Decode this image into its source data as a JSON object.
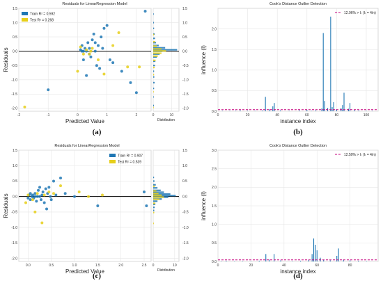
{
  "colors": {
    "train": "#1f77b4",
    "test": "#e6cf1a",
    "cooks_stem": "#1f77b4",
    "threshold": "#c6007f",
    "grid": "#e6e6e6",
    "axis": "#555555",
    "zero_line": "#000000"
  },
  "chart_data": [
    {
      "type": "scatter",
      "panel_label": "(a)",
      "title": "Residuals for LinearRegression Model",
      "xlabel": "Predicted Value",
      "ylabel": "Residuals",
      "xlim": [
        -2,
        2.5
      ],
      "ylim": [
        -2.1,
        1.5
      ],
      "xticks": [
        -2,
        -1,
        0,
        1,
        2
      ],
      "yticks": [
        -2.0,
        -1.5,
        -1.0,
        -0.5,
        0.0,
        0.5,
        1.0,
        1.5
      ],
      "xtick_labels": [
        "-2",
        "-1",
        "0",
        "1",
        "2"
      ],
      "ytick_labels": [
        "-2.0",
        "-1.5",
        "-1.0",
        "-0.5",
        "0.0",
        "0.5",
        "1.0",
        "1.5"
      ],
      "legend": [
        "Train R² = 0.592",
        "Test R² = 0.268"
      ],
      "legend_position": "top-left",
      "grid": true,
      "series": [
        {
          "name": "Train R² = 0.592",
          "points": [
            [
              -1.0,
              -1.35
            ],
            [
              0.1,
              0.05
            ],
            [
              0.15,
              0.2
            ],
            [
              0.2,
              -0.3
            ],
            [
              0.25,
              0.1
            ],
            [
              0.3,
              0.0
            ],
            [
              0.35,
              0.3
            ],
            [
              0.4,
              0.1
            ],
            [
              0.45,
              -0.2
            ],
            [
              0.5,
              0.4
            ],
            [
              0.55,
              0.6
            ],
            [
              0.6,
              0.3
            ],
            [
              0.65,
              -0.5
            ],
            [
              0.7,
              0.2
            ],
            [
              0.75,
              -0.6
            ],
            [
              0.8,
              0.5
            ],
            [
              0.85,
              0.1
            ],
            [
              0.9,
              0.8
            ],
            [
              1.0,
              0.9
            ],
            [
              1.1,
              -0.3
            ],
            [
              1.2,
              -0.4
            ],
            [
              1.5,
              -0.7
            ],
            [
              1.8,
              -1.1
            ],
            [
              2.0,
              -1.45
            ],
            [
              2.3,
              1.4
            ],
            [
              0.3,
              -0.85
            ],
            [
              0.2,
              0.0
            ],
            [
              0.4,
              -0.1
            ],
            [
              0.6,
              0.0
            ],
            [
              0.15,
              0.0
            ]
          ]
        },
        {
          "name": "Test R² = 0.268",
          "points": [
            [
              -1.8,
              -1.95
            ],
            [
              0.1,
              0.15
            ],
            [
              0.2,
              -0.1
            ],
            [
              0.3,
              0.05
            ],
            [
              0.4,
              -0.1
            ],
            [
              0.5,
              0.1
            ],
            [
              0.7,
              -0.3
            ],
            [
              0.9,
              -0.8
            ],
            [
              1.2,
              0.2
            ],
            [
              1.4,
              0.65
            ],
            [
              1.7,
              -0.55
            ],
            [
              2.1,
              -0.55
            ],
            [
              0.0,
              -0.7
            ],
            [
              0.45,
              0.0
            ]
          ]
        }
      ],
      "distribution": {
        "xlabel": "Distribution",
        "xlim": [
          0,
          14
        ],
        "xticks": [
          0,
          10
        ],
        "xtick_labels": [
          "0",
          "10"
        ],
        "train_bins": [
          [
            -1.9,
            0.4
          ],
          [
            -1.6,
            0.3
          ],
          [
            -1.3,
            0.5
          ],
          [
            -1.1,
            0.8
          ],
          [
            -0.9,
            0.6
          ],
          [
            -0.7,
            0.5
          ],
          [
            -0.5,
            1.0
          ],
          [
            -0.35,
            1.2
          ],
          [
            -0.2,
            2.0
          ],
          [
            -0.1,
            3.5
          ],
          [
            0.0,
            5.0
          ],
          [
            0.05,
            13.0
          ],
          [
            0.12,
            6.5
          ],
          [
            0.2,
            3.0
          ],
          [
            0.3,
            1.5
          ],
          [
            0.45,
            1.0
          ],
          [
            0.6,
            0.8
          ],
          [
            0.8,
            0.5
          ],
          [
            1.0,
            0.4
          ],
          [
            1.3,
            0.3
          ]
        ],
        "test_bins": [
          [
            -1.95,
            0.3
          ],
          [
            -1.4,
            0.3
          ],
          [
            -0.8,
            0.5
          ],
          [
            -0.55,
            0.8
          ],
          [
            -0.3,
            1.3
          ],
          [
            -0.15,
            2.5
          ],
          [
            -0.05,
            4.5
          ],
          [
            0.03,
            7.0
          ],
          [
            0.1,
            4.5
          ],
          [
            0.2,
            2.0
          ],
          [
            0.35,
            1.0
          ],
          [
            0.6,
            0.5
          ]
        ]
      }
    },
    {
      "type": "bar",
      "panel_label": "(b)",
      "title": "Cook's Distance Outlier Detection",
      "xlabel": "instance index",
      "ylabel": "influence (I)",
      "xlim": [
        0,
        108
      ],
      "ylim": [
        0,
        2.5
      ],
      "xticks": [
        0,
        20,
        40,
        60,
        80,
        100
      ],
      "yticks": [
        0.0,
        0.5,
        1.0,
        1.5,
        2.0
      ],
      "xtick_labels": [
        "0",
        "20",
        "40",
        "60",
        "80",
        "100"
      ],
      "ytick_labels": [
        "0.0",
        "0.5",
        "1.0",
        "1.5",
        "2.0"
      ],
      "legend": [
        "12.96% > Iₜ (Iₜ = 4/n)"
      ],
      "legend_position": "top-right",
      "threshold": 0.038,
      "grid": true,
      "points": [
        [
          3,
          0.01
        ],
        [
          8,
          0.01
        ],
        [
          12,
          0.01
        ],
        [
          15,
          0.02
        ],
        [
          20,
          0.01
        ],
        [
          25,
          0.01
        ],
        [
          30,
          0.02
        ],
        [
          32,
          0.35
        ],
        [
          35,
          0.05
        ],
        [
          37,
          0.12
        ],
        [
          38,
          0.2
        ],
        [
          42,
          0.02
        ],
        [
          48,
          0.01
        ],
        [
          55,
          0.02
        ],
        [
          60,
          0.03
        ],
        [
          63,
          0.01
        ],
        [
          66,
          0.02
        ],
        [
          70,
          0.07
        ],
        [
          71,
          1.9
        ],
        [
          72,
          0.25
        ],
        [
          74,
          0.08
        ],
        [
          76,
          2.3
        ],
        [
          77,
          0.1
        ],
        [
          78,
          0.22
        ],
        [
          80,
          0.05
        ],
        [
          83,
          0.08
        ],
        [
          84,
          0.15
        ],
        [
          85,
          0.45
        ],
        [
          88,
          0.06
        ],
        [
          89,
          0.2
        ],
        [
          92,
          0.03
        ],
        [
          95,
          0.02
        ],
        [
          100,
          0.01
        ],
        [
          104,
          0.01
        ]
      ]
    },
    {
      "type": "scatter",
      "panel_label": "(c)",
      "title": "Residuals for LinearRegression Model",
      "xlabel": "Predicted Value",
      "ylabel": "Residuals",
      "xlim": [
        -0.2,
        2.65
      ],
      "ylim": [
        -2.1,
        1.5
      ],
      "xticks": [
        0.0,
        0.5,
        1.0,
        1.5,
        2.0,
        2.5
      ],
      "yticks": [
        -2.0,
        -1.5,
        -1.0,
        -0.5,
        0.0,
        0.5,
        1.0,
        1.5
      ],
      "xtick_labels": [
        "0.0",
        "0.5",
        "1.0",
        "1.5",
        "2.0",
        "2.5"
      ],
      "ytick_labels": [
        "-2.0",
        "-1.5",
        "-1.0",
        "-0.5",
        "0.0",
        "0.5",
        "1.0",
        "1.5"
      ],
      "legend": [
        "Train R² = 0.907",
        "Test R² = 0.539"
      ],
      "legend_position": "top-right",
      "grid": true,
      "series": [
        {
          "name": "Train R² = 0.907",
          "points": [
            [
              0.0,
              -0.05
            ],
            [
              0.02,
              0.05
            ],
            [
              0.05,
              -0.1
            ],
            [
              0.08,
              0.0
            ],
            [
              0.1,
              0.05
            ],
            [
              0.12,
              -0.05
            ],
            [
              0.15,
              0.1
            ],
            [
              0.18,
              -0.15
            ],
            [
              0.2,
              0.0
            ],
            [
              0.22,
              0.2
            ],
            [
              0.25,
              0.3
            ],
            [
              0.28,
              -0.1
            ],
            [
              0.3,
              0.05
            ],
            [
              0.32,
              0.15
            ],
            [
              0.35,
              -0.2
            ],
            [
              0.38,
              0.25
            ],
            [
              0.4,
              -0.4
            ],
            [
              0.42,
              0.1
            ],
            [
              0.45,
              0.3
            ],
            [
              0.48,
              0.0
            ],
            [
              0.5,
              -0.1
            ],
            [
              0.55,
              0.5
            ],
            [
              0.6,
              0.05
            ],
            [
              0.7,
              0.6
            ],
            [
              0.8,
              0.1
            ],
            [
              1.0,
              0.0
            ],
            [
              1.5,
              -0.3
            ],
            [
              2.5,
              0.15
            ],
            [
              2.55,
              -0.3
            ],
            [
              0.15,
              0.0
            ],
            [
              0.25,
              0.0
            ],
            [
              0.05,
              0.1
            ]
          ]
        },
        {
          "name": "Test R² = 0.539",
          "points": [
            [
              -0.05,
              -0.2
            ],
            [
              0.0,
              0.05
            ],
            [
              0.1,
              -0.1
            ],
            [
              0.15,
              -0.5
            ],
            [
              0.2,
              0.1
            ],
            [
              0.3,
              -0.85
            ],
            [
              0.35,
              0.05
            ],
            [
              0.45,
              0.15
            ],
            [
              0.55,
              0.1
            ],
            [
              0.7,
              0.35
            ],
            [
              1.1,
              0.15
            ],
            [
              1.3,
              0.0
            ],
            [
              1.6,
              0.05
            ]
          ]
        }
      ],
      "distribution": {
        "xlabel": "Distribution",
        "xlim": [
          0,
          12
        ],
        "xticks": [
          0,
          10
        ],
        "xtick_labels": [
          "0",
          "10"
        ],
        "train_bins": [
          [
            -0.45,
            0.5
          ],
          [
            -0.35,
            0.7
          ],
          [
            -0.25,
            1.0
          ],
          [
            -0.15,
            2.0
          ],
          [
            -0.08,
            4.0
          ],
          [
            -0.02,
            7.0
          ],
          [
            0.03,
            10.5
          ],
          [
            0.08,
            8.0
          ],
          [
            0.14,
            5.0
          ],
          [
            0.2,
            3.5
          ],
          [
            0.28,
            2.0
          ],
          [
            0.38,
            1.2
          ],
          [
            0.5,
            0.6
          ],
          [
            0.62,
            0.4
          ]
        ],
        "test_bins": [
          [
            -0.85,
            0.3
          ],
          [
            -0.5,
            0.5
          ],
          [
            -0.2,
            1.0
          ],
          [
            -0.07,
            3.0
          ],
          [
            0.0,
            5.0
          ],
          [
            0.06,
            4.0
          ],
          [
            0.12,
            2.5
          ],
          [
            0.2,
            1.5
          ],
          [
            0.35,
            0.7
          ]
        ]
      }
    },
    {
      "type": "bar",
      "panel_label": "(d)",
      "title": "Cook's Distance Outlier Detection",
      "xlabel": "instance index",
      "ylabel": "influence (I)",
      "xlim": [
        0,
        97
      ],
      "ylim": [
        0,
        3.0
      ],
      "xticks": [
        0,
        20,
        40,
        60,
        80
      ],
      "yticks": [
        0.0,
        0.5,
        1.0,
        1.5,
        2.0,
        2.5,
        3.0
      ],
      "xtick_labels": [
        "0",
        "20",
        "40",
        "60",
        "80"
      ],
      "ytick_labels": [
        "0.0",
        "0.5",
        "1.0",
        "1.5",
        "2.0",
        "2.5",
        "3.0"
      ],
      "legend": [
        "12.50% > Iₜ (Iₜ = 4/n)"
      ],
      "legend_position": "top-right",
      "threshold": 0.042,
      "grid": true,
      "points": [
        [
          2,
          0.01
        ],
        [
          5,
          0.02
        ],
        [
          10,
          0.01
        ],
        [
          15,
          0.01
        ],
        [
          20,
          0.01
        ],
        [
          25,
          0.02
        ],
        [
          29,
          0.2
        ],
        [
          31,
          0.05
        ],
        [
          34,
          0.2
        ],
        [
          38,
          0.03
        ],
        [
          45,
          0.01
        ],
        [
          50,
          0.02
        ],
        [
          55,
          0.05
        ],
        [
          57,
          0.2
        ],
        [
          58,
          0.62
        ],
        [
          59,
          0.45
        ],
        [
          60,
          0.3
        ],
        [
          62,
          0.1
        ],
        [
          64,
          0.05
        ],
        [
          68,
          0.03
        ],
        [
          72,
          0.15
        ],
        [
          73,
          0.35
        ],
        [
          76,
          0.05
        ],
        [
          80,
          0.03
        ],
        [
          85,
          0.02
        ],
        [
          90,
          0.01
        ]
      ]
    }
  ]
}
